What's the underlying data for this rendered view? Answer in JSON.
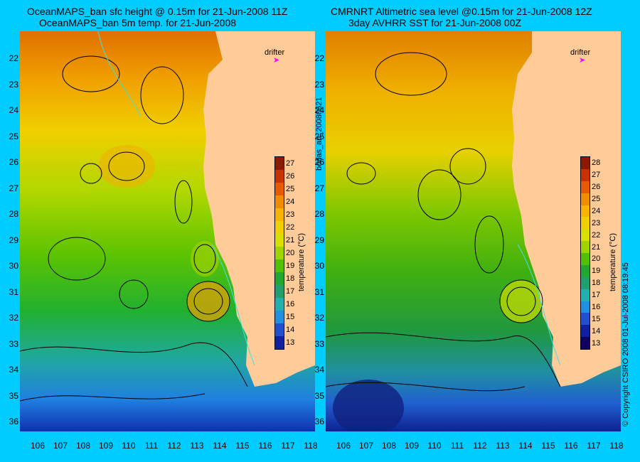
{
  "left_panel": {
    "title_line1": "OceanMAPS_ban sfc height @ 0.15m for 21-Jun-2008 11Z",
    "title_line2": "OceanMAPS_ban 5m temp. for 21-Jun-2008",
    "drifter_label": "drifter"
  },
  "right_panel": {
    "title_line1": "CMRNRT Altimetric sea level  @0.15m  for 21-Jun-2008 12Z",
    "title_line2": "3day AVHRR SST for 21-Jun-2008 00Z",
    "drifter_label": "drifter"
  },
  "y_ticks": [
    "22",
    "23",
    "24",
    "25",
    "26",
    "27",
    "28",
    "29",
    "30",
    "31",
    "32",
    "33",
    "34",
    "35",
    "36"
  ],
  "x_ticks": [
    "106",
    "107",
    "108",
    "109",
    "110",
    "111",
    "112",
    "113",
    "114",
    "115",
    "116",
    "117",
    "118"
  ],
  "colorbar": {
    "title": "temperature (°C)",
    "left_ticks": [
      "27",
      "26",
      "25",
      "24",
      "23",
      "22",
      "21",
      "20",
      "19",
      "18",
      "17",
      "16",
      "15",
      "14",
      "13"
    ],
    "right_ticks": [
      "28",
      "27",
      "26",
      "25",
      "24",
      "23",
      "22",
      "21",
      "20",
      "19",
      "18",
      "17",
      "16",
      "15",
      "14",
      "13"
    ],
    "colors": [
      "#8b1a00",
      "#c83200",
      "#e85a00",
      "#f08c00",
      "#f8b400",
      "#f0d000",
      "#d8e000",
      "#a0d400",
      "#50c000",
      "#20a830",
      "#20a070",
      "#20b0b0",
      "#2090e0",
      "#2050d0",
      "#1020a0",
      "#100060"
    ]
  },
  "side_text_mid": "bodas_an_20080621",
  "side_text_right": "© Copyright CSIRO 2008    01-Jul-2008 08:19:45",
  "colors": {
    "background": "#00ccff",
    "land": "#ffcc99",
    "drifter": "#ff00ff"
  }
}
